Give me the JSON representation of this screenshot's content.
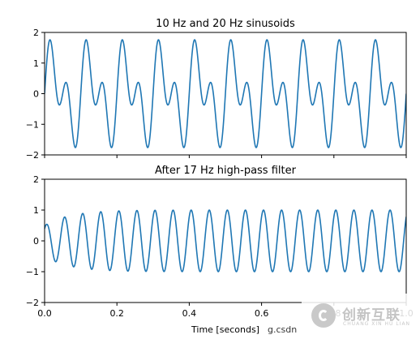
{
  "chart_data": [
    {
      "type": "line",
      "title": "10 Hz and 20 Hz sinusoids",
      "xlim": [
        0,
        1
      ],
      "ylim": [
        -2,
        2
      ],
      "yticks": [
        -2,
        -1,
        0,
        1,
        2
      ],
      "ytick_labels": [
        "−2",
        "−1",
        "0",
        "1",
        "2"
      ],
      "xticks": [
        0,
        0.2,
        0.4,
        0.6,
        0.8,
        1.0
      ],
      "xtick_labels": [
        "",
        "",
        "",
        "",
        "",
        ""
      ],
      "grid": false,
      "series": [
        {
          "components": [
            {
              "frequency_hz": 10,
              "amplitude": 1
            },
            {
              "frequency_hz": 20,
              "amplitude": 1
            }
          ]
        }
      ]
    },
    {
      "type": "line",
      "title": "After 17 Hz high-pass filter",
      "xlabel": "Time [seconds]",
      "xlim": [
        0,
        1
      ],
      "ylim": [
        -2,
        2
      ],
      "yticks": [
        -2,
        -1,
        0,
        1,
        2
      ],
      "ytick_labels": [
        "−2",
        "−1",
        "0",
        "1",
        "2"
      ],
      "xticks": [
        0,
        0.2,
        0.4,
        0.6,
        0.8,
        1.0
      ],
      "xtick_labels": [
        "0.0",
        "0.2",
        "0.4",
        "0.6",
        "0.8",
        "1.0"
      ],
      "grid": false,
      "series": [
        {
          "frequency_hz": 20,
          "amplitude_steady": 1,
          "amplitude_start": 0.5
        }
      ]
    }
  ],
  "watermark": {
    "text": "创新互联",
    "subtext": "CHUANG XIN HU LIAN",
    "overlay_text": "g.csdn"
  },
  "colors": {
    "line": "#1f77b4"
  }
}
